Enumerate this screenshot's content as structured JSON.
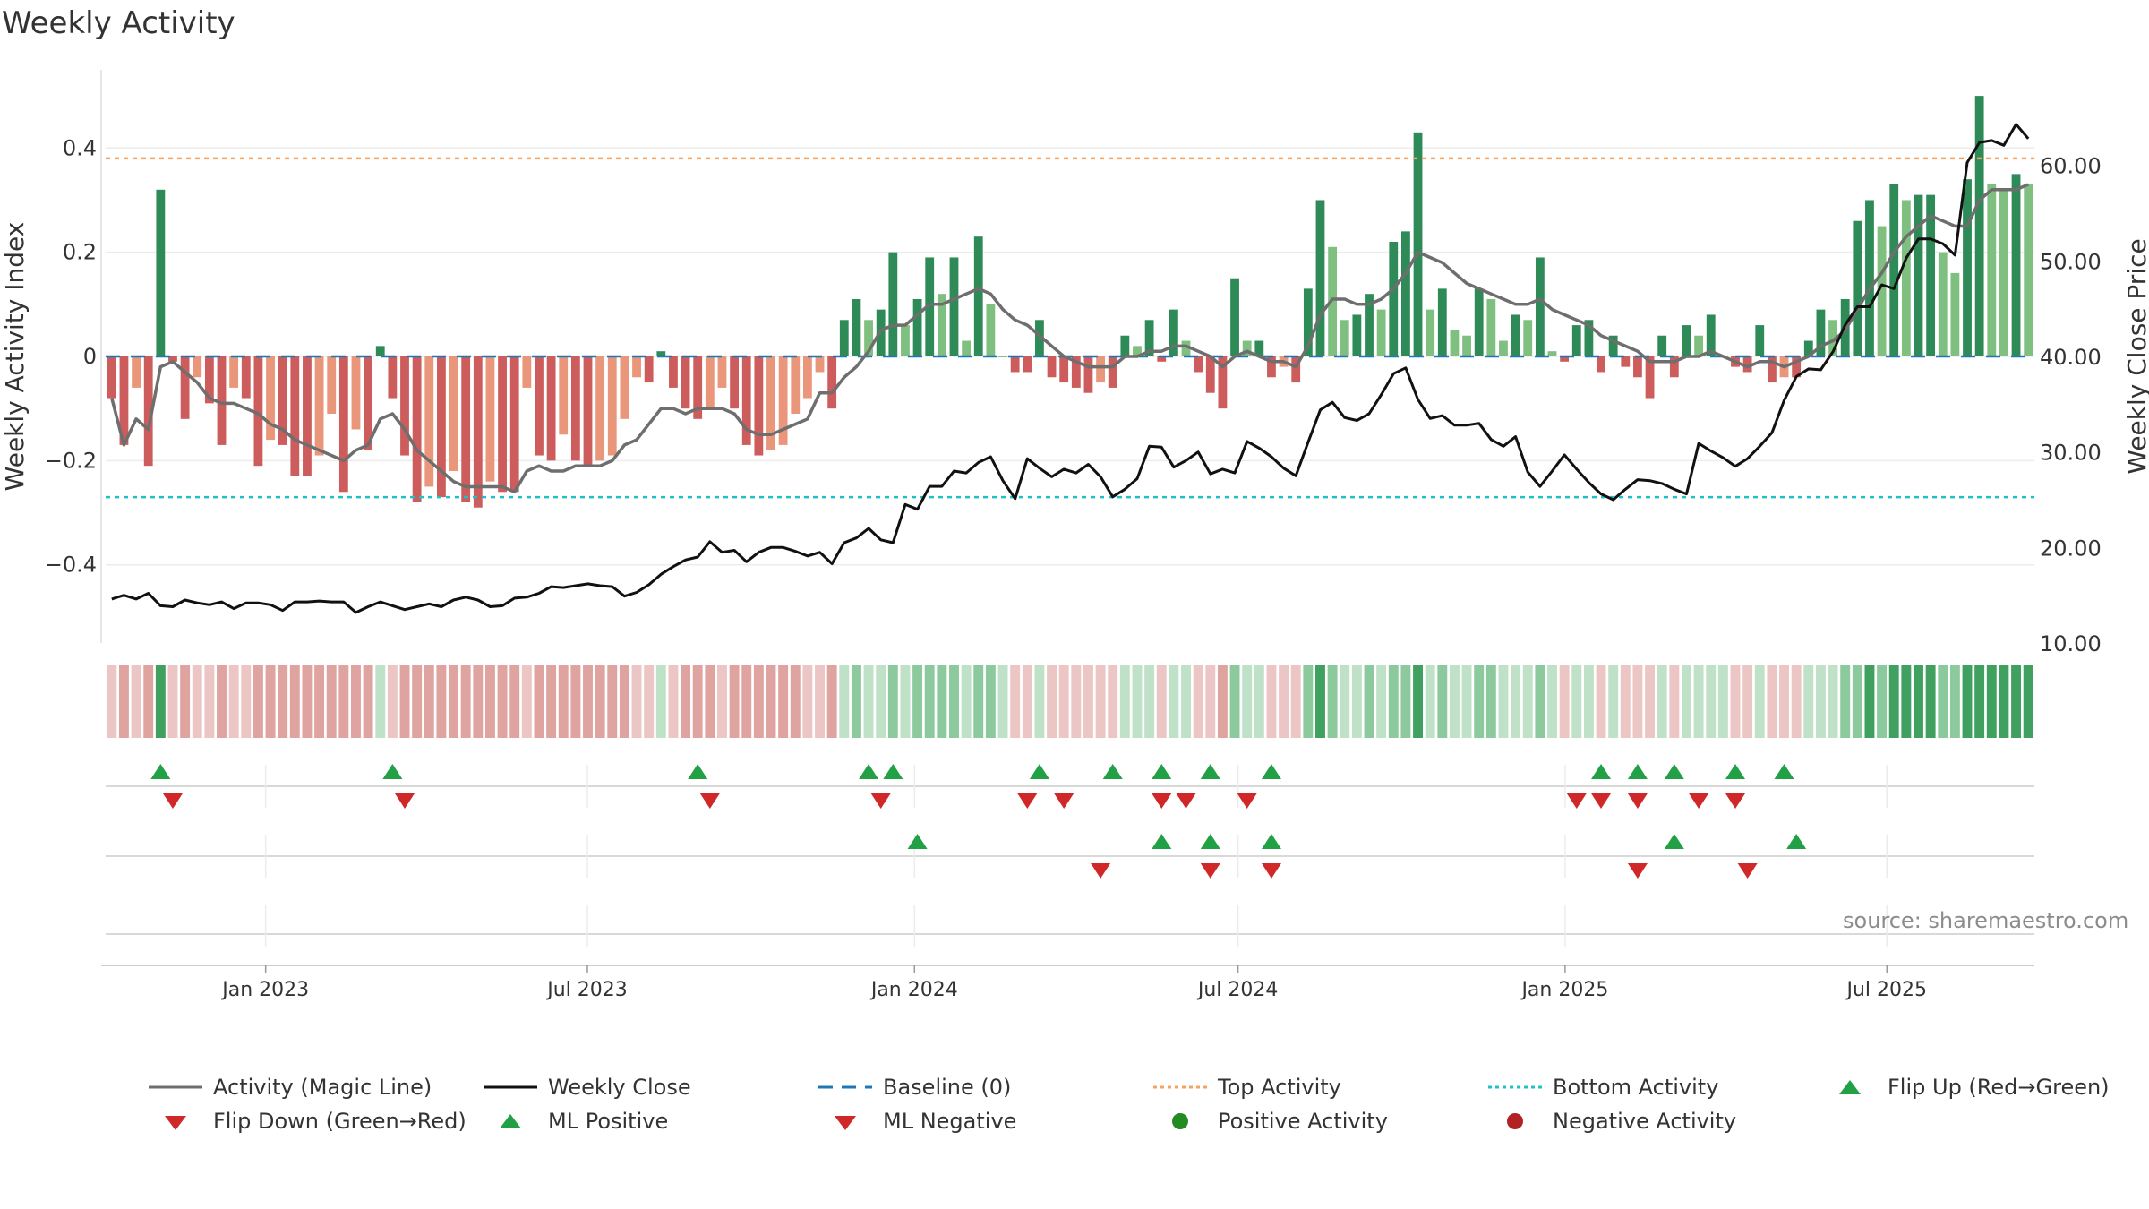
{
  "chart_data": {
    "type": "bar",
    "title": "Weekly Activity",
    "source": "source: sharemaestro.com",
    "ylabel_left": "Weekly Activity Index",
    "ylabel_right": "Weekly Close Price",
    "ylim_left": [
      -0.55,
      0.55
    ],
    "ylim_right": [
      10,
      70
    ],
    "yticks_left": [
      {
        "value": 0.4,
        "label": "0.4"
      },
      {
        "value": 0.2,
        "label": "0.2"
      },
      {
        "value": 0,
        "label": "0"
      },
      {
        "value": -0.2,
        "label": "−0.2"
      },
      {
        "value": -0.4,
        "label": "−0.4"
      }
    ],
    "yticks_right": [
      {
        "value": 60,
        "label": "60.00"
      },
      {
        "value": 50,
        "label": "50.00"
      },
      {
        "value": 40,
        "label": "40.00"
      },
      {
        "value": 30,
        "label": "30.00"
      },
      {
        "value": 20,
        "label": "20.00"
      },
      {
        "value": 10,
        "label": "10.00"
      }
    ],
    "top_activity": 0.38,
    "bottom_activity": -0.27,
    "x_start": "2022-10-03",
    "x_end": "2025-09-22",
    "xticks": [
      {
        "date": "2023-01-01",
        "label": "Jan 2023"
      },
      {
        "date": "2023-07-01",
        "label": "Jul 2023"
      },
      {
        "date": "2024-01-01",
        "label": "Jan 2024"
      },
      {
        "date": "2024-07-01",
        "label": "Jul 2024"
      },
      {
        "date": "2025-01-01",
        "label": "Jan 2025"
      },
      {
        "date": "2025-07-01",
        "label": "Jul 2025"
      }
    ],
    "series": [
      {
        "name": "Activity Index",
        "values": [
          -0.08,
          -0.17,
          -0.06,
          -0.21,
          0.32,
          -0.01,
          -0.12,
          -0.04,
          -0.09,
          -0.17,
          -0.06,
          -0.08,
          -0.21,
          -0.16,
          -0.17,
          -0.23,
          -0.23,
          -0.19,
          -0.11,
          -0.26,
          -0.14,
          -0.18,
          0.02,
          -0.08,
          -0.19,
          -0.28,
          -0.25,
          -0.27,
          -0.22,
          -0.28,
          -0.29,
          -0.24,
          -0.26,
          -0.26,
          -0.06,
          -0.19,
          -0.2,
          -0.15,
          -0.2,
          -0.21,
          -0.2,
          -0.19,
          -0.12,
          -0.04,
          -0.05,
          0.01,
          -0.06,
          -0.1,
          -0.12,
          -0.1,
          -0.06,
          -0.1,
          -0.17,
          -0.19,
          -0.18,
          -0.17,
          -0.11,
          -0.08,
          -0.03,
          -0.1,
          0.07,
          0.11,
          0.07,
          0.09,
          0.2,
          0.06,
          0.11,
          0.19,
          0.12,
          0.19,
          0.03,
          0.23,
          0.1,
          0.0,
          -0.03,
          -0.03,
          0.07,
          -0.04,
          -0.05,
          -0.06,
          -0.07,
          -0.05,
          -0.06,
          0.04,
          0.02,
          0.07,
          -0.01,
          0.09,
          0.03,
          -0.03,
          -0.07,
          -0.1,
          0.15,
          0.03,
          0.03,
          -0.04,
          -0.02,
          -0.05,
          0.13,
          0.3,
          0.21,
          0.07,
          0.08,
          0.12,
          0.09,
          0.22,
          0.24,
          0.43,
          0.09,
          0.13,
          0.05,
          0.04,
          0.13,
          0.11,
          0.03,
          0.08,
          0.07,
          0.19,
          0.01,
          -0.01,
          0.06,
          0.07,
          -0.03,
          0.04,
          -0.02,
          -0.04,
          -0.08,
          0.04,
          -0.04,
          0.06,
          0.04,
          0.08,
          0.0,
          -0.02,
          -0.03,
          0.06,
          -0.05,
          -0.04,
          -0.04,
          0.03,
          0.09,
          0.07,
          0.11,
          0.26,
          0.3,
          0.25,
          0.33,
          0.3,
          0.31,
          0.31,
          0.2,
          0.16,
          0.34,
          0.5,
          0.33,
          0.32,
          0.35,
          0.33
        ]
      },
      {
        "name": "Activity (Magic Line)",
        "values": [
          -0.08,
          -0.17,
          -0.12,
          -0.14,
          -0.02,
          -0.01,
          -0.03,
          -0.05,
          -0.08,
          -0.09,
          -0.09,
          -0.1,
          -0.11,
          -0.13,
          -0.14,
          -0.16,
          -0.17,
          -0.18,
          -0.19,
          -0.2,
          -0.18,
          -0.17,
          -0.12,
          -0.11,
          -0.14,
          -0.18,
          -0.2,
          -0.22,
          -0.24,
          -0.25,
          -0.25,
          -0.25,
          -0.25,
          -0.26,
          -0.22,
          -0.21,
          -0.22,
          -0.22,
          -0.21,
          -0.21,
          -0.21,
          -0.2,
          -0.17,
          -0.16,
          -0.13,
          -0.1,
          -0.1,
          -0.11,
          -0.1,
          -0.1,
          -0.1,
          -0.11,
          -0.14,
          -0.15,
          -0.15,
          -0.14,
          -0.13,
          -0.12,
          -0.07,
          -0.07,
          -0.04,
          -0.02,
          0.01,
          0.05,
          0.06,
          0.06,
          0.08,
          0.1,
          0.1,
          0.11,
          0.12,
          0.13,
          0.12,
          0.09,
          0.07,
          0.06,
          0.04,
          0.02,
          0.0,
          -0.01,
          -0.02,
          -0.02,
          -0.02,
          0.0,
          0.0,
          0.01,
          0.01,
          0.02,
          0.02,
          0.01,
          0.0,
          -0.02,
          0.0,
          0.01,
          0.0,
          -0.01,
          -0.01,
          -0.02,
          0.02,
          0.08,
          0.11,
          0.11,
          0.1,
          0.1,
          0.11,
          0.13,
          0.16,
          0.2,
          0.19,
          0.18,
          0.16,
          0.14,
          0.13,
          0.12,
          0.11,
          0.1,
          0.1,
          0.11,
          0.09,
          0.08,
          0.07,
          0.06,
          0.04,
          0.03,
          0.02,
          0.01,
          -0.01,
          -0.01,
          -0.01,
          0.0,
          0.0,
          0.01,
          0.0,
          -0.01,
          -0.02,
          -0.01,
          -0.01,
          -0.02,
          -0.01,
          0.0,
          0.02,
          0.03,
          0.05,
          0.09,
          0.13,
          0.16,
          0.2,
          0.23,
          0.25,
          0.27,
          0.26,
          0.25,
          0.25,
          0.3,
          0.32,
          0.32,
          0.32,
          0.33
        ]
      },
      {
        "name": "Weekly Close",
        "values": [
          14.6,
          15.0,
          14.6,
          15.2,
          13.9,
          13.8,
          14.5,
          14.2,
          14.0,
          14.3,
          13.6,
          14.2,
          14.2,
          14.0,
          13.4,
          14.3,
          14.3,
          14.4,
          14.3,
          14.3,
          13.2,
          13.8,
          14.3,
          13.9,
          13.5,
          13.8,
          14.1,
          13.8,
          14.5,
          14.8,
          14.5,
          13.8,
          13.9,
          14.7,
          14.8,
          15.2,
          15.9,
          15.8,
          16.0,
          16.2,
          16.0,
          15.9,
          14.9,
          15.3,
          16.1,
          17.2,
          18.0,
          18.7,
          19.0,
          20.6,
          19.5,
          19.7,
          18.5,
          19.5,
          20.0,
          20.0,
          19.6,
          19.1,
          19.5,
          18.3,
          20.5,
          21.0,
          22.0,
          20.8,
          20.5,
          24.5,
          24.0,
          26.4,
          26.4,
          28.0,
          27.8,
          28.9,
          29.5,
          27.0,
          25.1,
          29.3,
          28.3,
          27.4,
          28.2,
          27.8,
          28.7,
          27.4,
          25.3,
          26.1,
          27.2,
          30.6,
          30.5,
          28.4,
          29.1,
          30.0,
          27.7,
          28.2,
          27.8,
          31.1,
          30.4,
          29.5,
          28.3,
          27.5,
          31.0,
          34.4,
          35.2,
          33.6,
          33.3,
          34.0,
          36.0,
          38.2,
          38.8,
          35.5,
          33.5,
          33.8,
          32.8,
          32.8,
          33.0,
          31.3,
          30.6,
          31.6,
          27.9,
          26.4,
          28.0,
          29.7,
          28.2,
          26.8,
          25.6,
          25.0,
          26.1,
          27.1,
          27.0,
          26.7,
          26.1,
          25.6,
          30.9,
          30.1,
          29.4,
          28.5,
          29.3,
          30.6,
          32.0,
          35.4,
          37.9,
          38.7,
          38.6,
          40.5,
          43.3,
          45.2,
          45.2,
          47.5,
          47.1,
          50.3,
          52.3,
          52.3,
          51.8,
          50.6,
          60.3,
          62.4,
          62.6,
          62.1,
          64.3,
          62.8
        ]
      }
    ],
    "strip_colors": {
      "strong_pos": "#3fa05f",
      "med_pos": "#8cc99c",
      "light_pos": "#bfe1c7",
      "light_neg": "#ebc6c4",
      "med_neg": "#dfa3a0"
    },
    "bar_colors": {
      "dark_green": "#2e8b57",
      "light_green": "#7fbf7f",
      "dark_red": "#cd5c5c",
      "light_red": "#e9967a"
    },
    "flip_up_weeks": [
      4,
      23,
      48,
      62,
      64,
      76,
      82,
      86,
      90,
      95,
      122,
      125,
      128,
      133,
      137
    ],
    "flip_down_weeks": [
      5,
      24,
      49,
      63,
      75,
      78,
      86,
      88,
      93,
      120,
      122,
      125,
      130,
      133
    ],
    "ml_positive_weeks": [
      66,
      86,
      90,
      95,
      128,
      138
    ],
    "ml_negative_weeks": [
      81,
      90,
      95,
      125,
      134
    ],
    "legend": [
      "Activity (Magic Line)",
      "Weekly Close",
      "Baseline (0)",
      "Top Activity",
      "Bottom Activity",
      "Flip Up (Red→Green)",
      "Flip Down (Green→Red)",
      "ML Positive",
      "ML Negative",
      "Positive Activity",
      "Negative Activity"
    ],
    "colors": {
      "magic_line": "#6e6e6e",
      "close_line": "#111111",
      "baseline": "#1f77b4",
      "top_activity": "#f4a460",
      "bottom_activity": "#20c0c8",
      "flip_up": "#22a045",
      "flip_down": "#d02828",
      "positive_activity": "#228b22",
      "negative_activity": "#b22222"
    }
  }
}
